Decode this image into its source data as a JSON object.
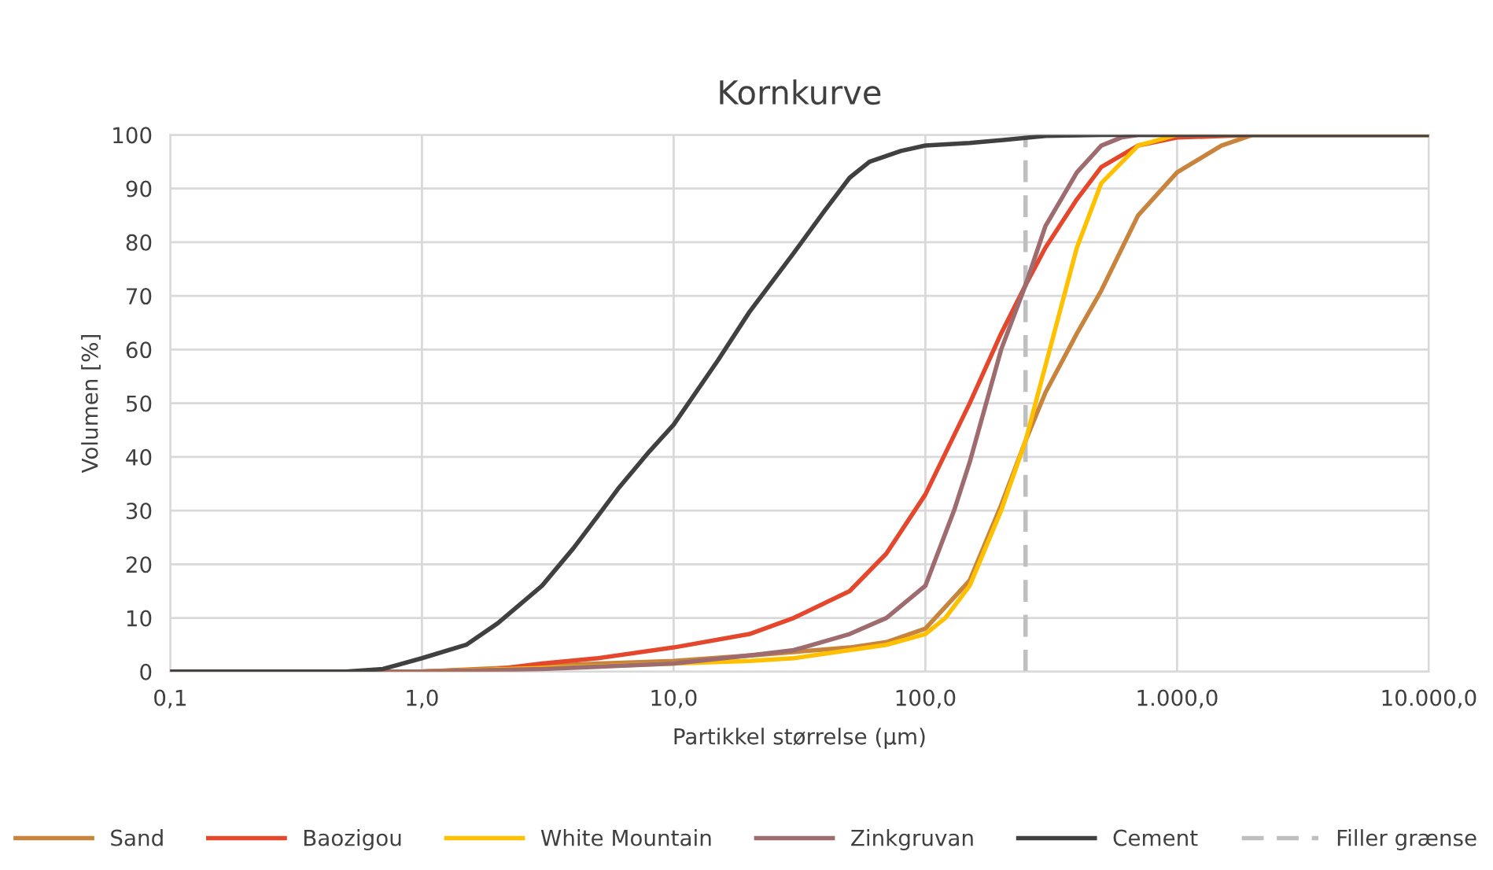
{
  "chart_data": {
    "type": "line",
    "title": "Kornkurve",
    "xlabel": "Partikkel størrelse (µm)",
    "ylabel": "Volumen [%]",
    "log": "x",
    "xlim": [
      0.1,
      10000
    ],
    "xticks": [
      {
        "value": 0.1,
        "label": "0,1"
      },
      {
        "value": 1,
        "label": "1,0"
      },
      {
        "value": 10,
        "label": "10,0"
      },
      {
        "value": 100,
        "label": "100,0"
      },
      {
        "value": 1000,
        "label": "1.000,0"
      },
      {
        "value": 10000,
        "label": "10.000,0"
      }
    ],
    "ylim": [
      0,
      100
    ],
    "yticks": [
      0,
      10,
      20,
      30,
      40,
      50,
      60,
      70,
      80,
      90,
      100
    ],
    "grid": true,
    "legend": "bottom",
    "marker": "none",
    "line_style": "solid",
    "series": [
      {
        "name": "Sand",
        "color": "#c8843c",
        "x": [
          0.1,
          1,
          5,
          10,
          20,
          50,
          70,
          100,
          150,
          200,
          250,
          300,
          400,
          500,
          700,
          1000,
          1500,
          2000,
          10000
        ],
        "values": [
          0,
          0,
          1.5,
          2,
          3,
          4.5,
          5.5,
          8,
          17,
          31,
          43,
          52,
          63,
          71,
          85,
          93,
          98,
          100,
          100
        ]
      },
      {
        "name": "Baozigou",
        "color": "#e4472b",
        "x": [
          0.1,
          1,
          2,
          3,
          5,
          10,
          20,
          30,
          50,
          70,
          100,
          150,
          200,
          250,
          300,
          400,
          500,
          700,
          1000,
          2000,
          10000
        ],
        "values": [
          0,
          0,
          0.5,
          1.5,
          2.5,
          4.5,
          7,
          10,
          15,
          22,
          33,
          50,
          63,
          72,
          79,
          88,
          94,
          98,
          99.5,
          100,
          100
        ]
      },
      {
        "name": "White Mountain",
        "color": "#ffc000",
        "x": [
          0.1,
          1,
          5,
          10,
          20,
          30,
          50,
          70,
          100,
          120,
          150,
          200,
          250,
          300,
          400,
          500,
          700,
          1000,
          10000
        ],
        "values": [
          0,
          0,
          1,
          1.5,
          2,
          2.5,
          4,
          5,
          7,
          10,
          16,
          30,
          43,
          57,
          79,
          91,
          98,
          100,
          100
        ]
      },
      {
        "name": "Zinkgruvan",
        "color": "#9e6b6e",
        "x": [
          0.1,
          1,
          3,
          10,
          20,
          30,
          50,
          70,
          100,
          130,
          150,
          200,
          250,
          300,
          400,
          500,
          600,
          700,
          10000
        ],
        "values": [
          0,
          0,
          0.5,
          1.5,
          3,
          4,
          7,
          10,
          16,
          30,
          39,
          60,
          72,
          83,
          93,
          98,
          99.5,
          100,
          100
        ]
      },
      {
        "name": "Cement",
        "color": "#404040",
        "x": [
          0.1,
          0.5,
          0.7,
          1,
          1.5,
          2,
          3,
          4,
          5,
          6,
          8,
          10,
          15,
          20,
          30,
          40,
          50,
          60,
          80,
          100,
          150,
          200,
          300,
          500,
          10000
        ],
        "values": [
          0,
          0,
          0.5,
          2.5,
          5,
          9,
          16,
          23,
          29,
          34,
          41,
          46,
          58,
          67,
          78,
          86,
          92,
          95,
          97,
          98,
          98.5,
          99,
          99.8,
          100,
          100
        ]
      }
    ],
    "ref_lines": [
      {
        "axis": "x",
        "value": 250,
        "label": "Filler grænse",
        "color": "#bfbfbf",
        "line_style": "dashed"
      }
    ]
  }
}
